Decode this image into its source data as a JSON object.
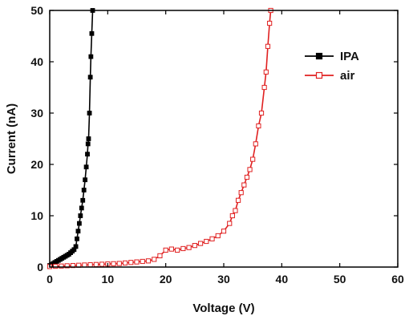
{
  "chart_data": {
    "type": "line",
    "title": "",
    "xlabel": "Voltage (V)",
    "ylabel": "Current (nA)",
    "xlim": [
      0,
      60
    ],
    "ylim": [
      0,
      50
    ],
    "xticks": [
      0,
      10,
      20,
      30,
      40,
      50,
      60
    ],
    "yticks": [
      0,
      10,
      20,
      30,
      40,
      50
    ],
    "grid": false,
    "legend_position": "top-right",
    "series": [
      {
        "name": "IPA",
        "color": "#000000",
        "marker": "filled-square",
        "x": [
          0.0,
          0.3,
          0.6,
          0.9,
          1.2,
          1.5,
          1.8,
          2.1,
          2.4,
          2.7,
          3.0,
          3.3,
          3.6,
          3.9,
          4.2,
          4.5,
          4.7,
          4.9,
          5.1,
          5.3,
          5.5,
          5.7,
          5.9,
          6.1,
          6.3,
          6.5,
          6.6,
          6.7,
          6.85,
          7.0,
          7.1,
          7.25,
          7.4
        ],
        "y": [
          0.3,
          0.5,
          0.7,
          0.9,
          1.1,
          1.3,
          1.5,
          1.7,
          1.9,
          2.1,
          2.3,
          2.5,
          2.8,
          3.1,
          3.4,
          4.0,
          5.5,
          7.0,
          8.5,
          10.0,
          11.5,
          13.0,
          15.0,
          17.0,
          19.5,
          22.0,
          24.0,
          25.0,
          30.0,
          37.0,
          41.0,
          45.5,
          50.0
        ]
      },
      {
        "name": "air",
        "color": "#e02020",
        "marker": "open-square",
        "x": [
          0.0,
          1.0,
          2.0,
          3.0,
          4.0,
          5.0,
          6.0,
          7.0,
          8.0,
          9.0,
          10.0,
          11.0,
          12.0,
          13.0,
          14.0,
          15.0,
          16.0,
          17.0,
          18.0,
          19.0,
          20.0,
          21.0,
          22.0,
          23.0,
          24.0,
          25.0,
          26.0,
          27.0,
          28.0,
          29.0,
          30.0,
          31.0,
          31.5,
          32.0,
          32.5,
          33.0,
          33.5,
          34.0,
          34.5,
          35.0,
          35.5,
          36.0,
          36.5,
          37.0,
          37.3,
          37.6,
          37.9,
          38.1
        ],
        "y": [
          0.1,
          0.15,
          0.2,
          0.25,
          0.3,
          0.35,
          0.4,
          0.45,
          0.5,
          0.55,
          0.6,
          0.65,
          0.7,
          0.8,
          0.9,
          1.0,
          1.1,
          1.2,
          1.5,
          2.2,
          3.3,
          3.5,
          3.3,
          3.6,
          3.8,
          4.2,
          4.6,
          5.0,
          5.5,
          6.1,
          7.0,
          8.5,
          10.0,
          11.0,
          13.0,
          14.5,
          16.0,
          17.5,
          19.0,
          21.0,
          24.0,
          27.5,
          30.0,
          35.0,
          38.0,
          43.0,
          47.5,
          50.0
        ]
      }
    ]
  }
}
